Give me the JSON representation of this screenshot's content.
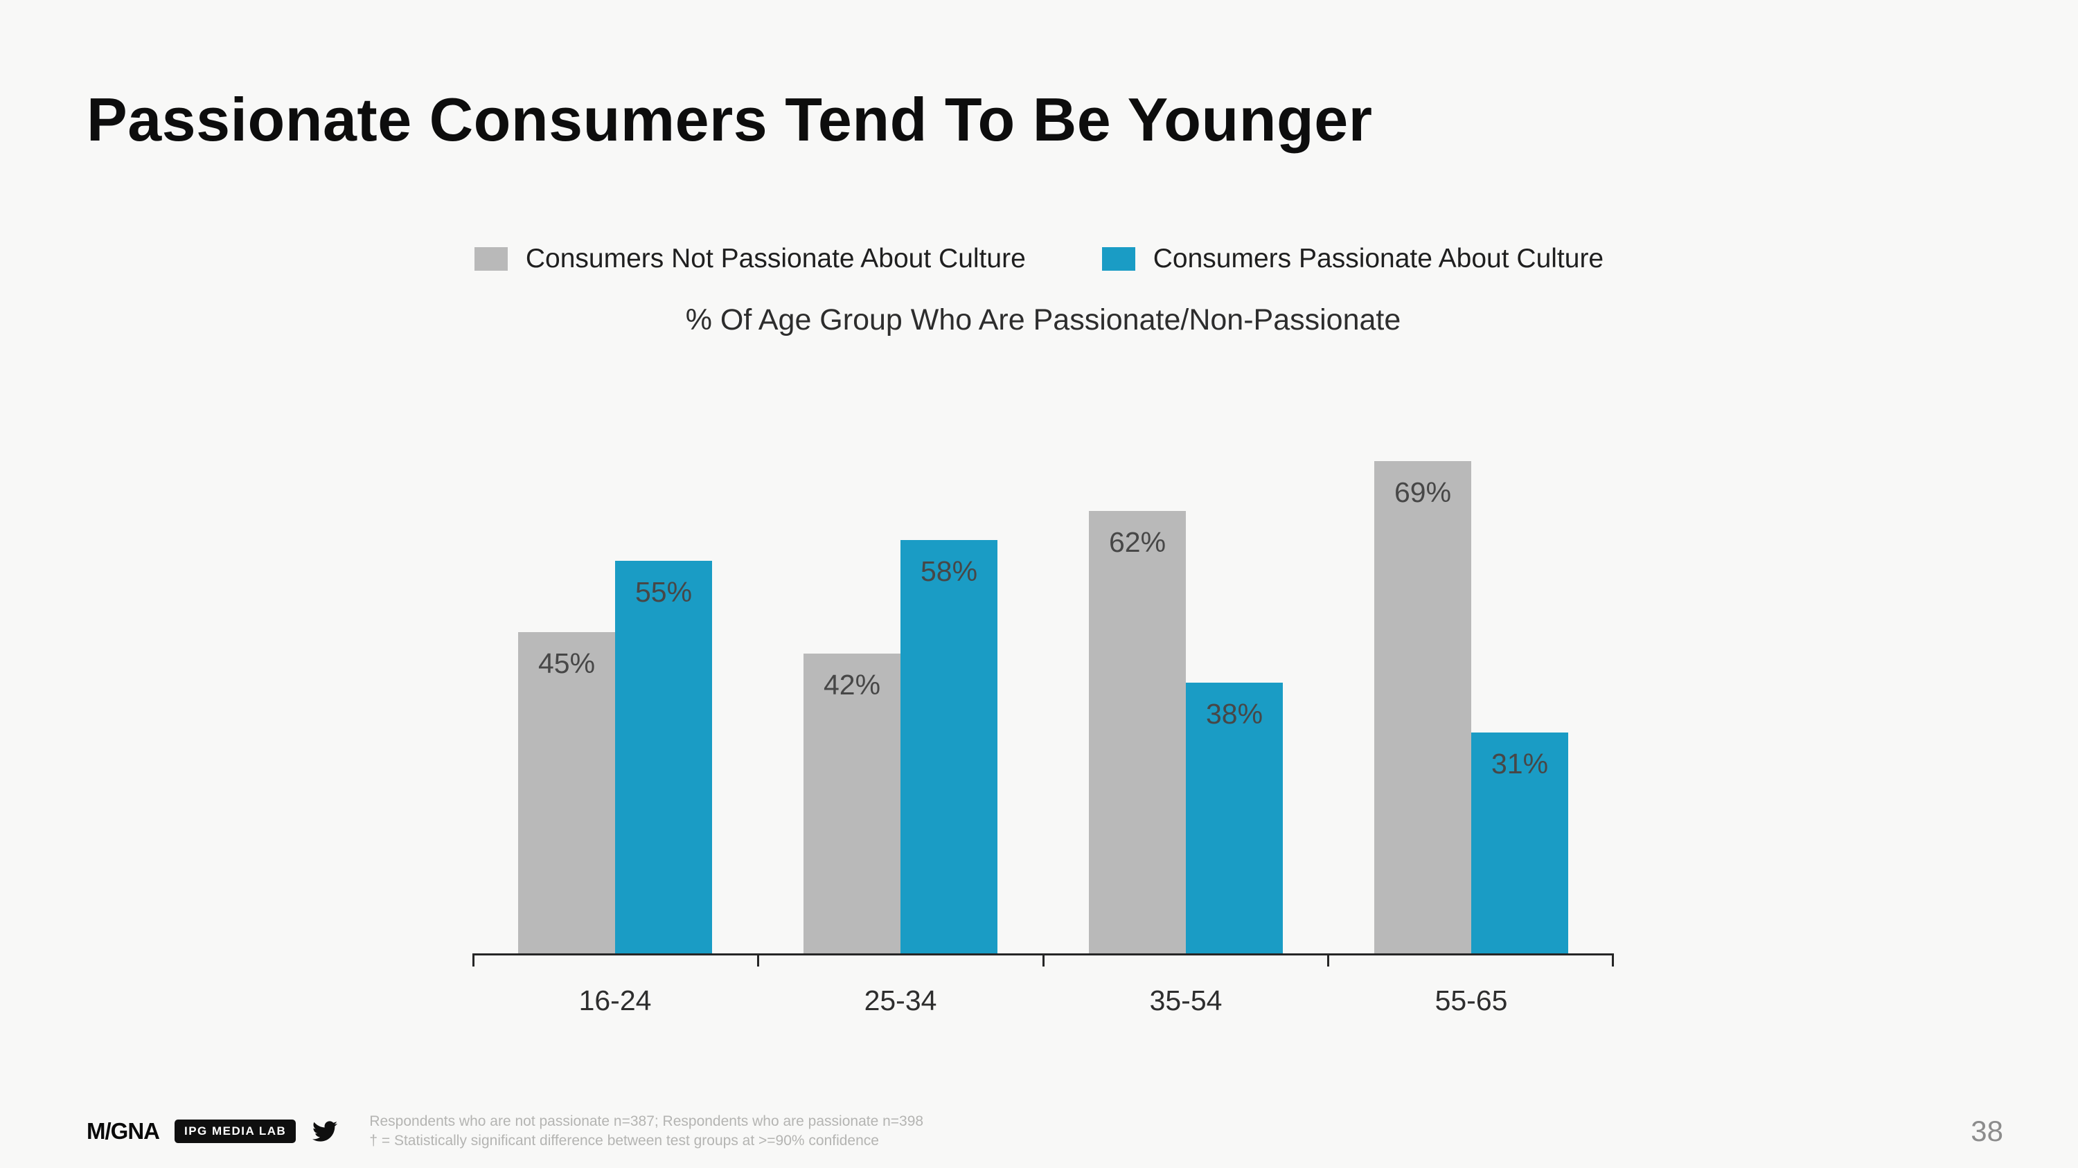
{
  "slide": {
    "title": "Passionate Consumers Tend To Be Younger",
    "page_number": "38"
  },
  "legend": {
    "items": [
      {
        "label": "Consumers Not Passionate About Culture",
        "color": "#b9b9b9"
      },
      {
        "label": "Consumers Passionate About Culture",
        "color": "#1a9cc5"
      }
    ]
  },
  "chart_data": {
    "type": "bar",
    "title": "% Of Age Group Who Are Passionate/Non-Passionate",
    "categories": [
      "16-24",
      "25-34",
      "35-54",
      "55-65"
    ],
    "series": [
      {
        "name": "Consumers Not Passionate About Culture",
        "color": "#b9b9b9",
        "values": [
          45,
          42,
          62,
          69
        ]
      },
      {
        "name": "Consumers Passionate About Culture",
        "color": "#1a9cc5",
        "values": [
          55,
          58,
          38,
          31
        ]
      }
    ],
    "value_suffix": "%",
    "ylim": [
      0,
      75
    ],
    "grid": false,
    "legend_position": "top"
  },
  "footer": {
    "logo_text": "M/GNA",
    "badge_text": "IPG MEDIA LAB",
    "note_line1": "Respondents who are not passionate n=387; Respondents who are passionate n=398",
    "note_line2": "† = Statistically significant difference between test groups at >=90% confidence"
  }
}
